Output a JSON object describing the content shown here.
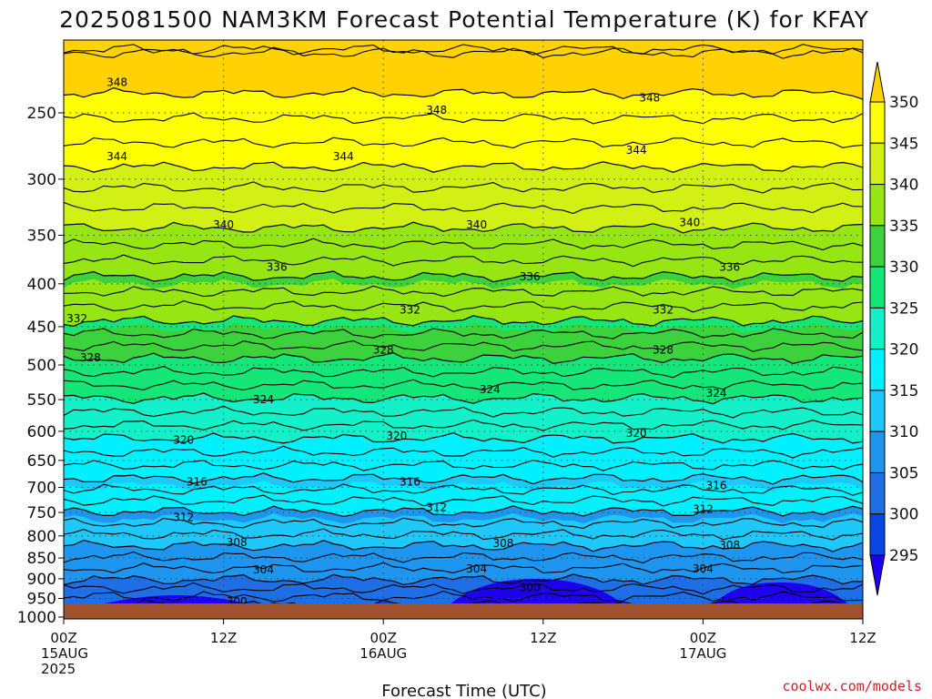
{
  "chart_data": {
    "type": "heatmap",
    "title": "2025081500 NAM3KM Forecast Potential Temperature (K) for KFAY",
    "xlabel": "Forecast Time (UTC)",
    "x_ticks": [
      {
        "value": 0,
        "lines": [
          "00Z",
          "15AUG",
          "2025"
        ]
      },
      {
        "value": 12,
        "lines": [
          "12Z"
        ]
      },
      {
        "value": 24,
        "lines": [
          "00Z",
          "16AUG"
        ]
      },
      {
        "value": 36,
        "lines": [
          "12Z"
        ]
      },
      {
        "value": 48,
        "lines": [
          "00Z",
          "17AUG"
        ]
      },
      {
        "value": 60,
        "lines": [
          "12Z"
        ]
      }
    ],
    "xlim": [
      0,
      60
    ],
    "y_scale": "log",
    "y_inverted": true,
    "y_ticks": [
      250,
      300,
      350,
      400,
      450,
      500,
      550,
      600,
      650,
      700,
      750,
      800,
      850,
      900,
      950,
      1000
    ],
    "ylim": [
      1000,
      200
    ],
    "colorbar": {
      "levels": [
        295,
        300,
        305,
        310,
        315,
        320,
        325,
        330,
        335,
        340,
        345,
        350
      ],
      "colors": [
        "#1e00f0",
        "#0a46e6",
        "#1e6ee6",
        "#1e96f0",
        "#1ec8fa",
        "#00f0ff",
        "#14f0c8",
        "#14e678",
        "#3cd23c",
        "#96e614",
        "#d2f014",
        "#ffff00",
        "#ffd200"
      ]
    },
    "contours": [
      {
        "value": 300,
        "p": 968
      },
      {
        "value": 304,
        "p": 902
      },
      {
        "value": 308,
        "p": 822
      },
      {
        "value": 312,
        "p": 748
      },
      {
        "value": 316,
        "p": 683
      },
      {
        "value": 320,
        "p": 612
      },
      {
        "value": 324,
        "p": 548
      },
      {
        "value": 328,
        "p": 491
      },
      {
        "value": 332,
        "p": 443
      },
      {
        "value": 336,
        "p": 392
      },
      {
        "value": 340,
        "p": 343
      },
      {
        "value": 344,
        "p": 290
      },
      {
        "value": 348,
        "p": 237
      }
    ],
    "contour_labels": [
      {
        "text": "348",
        "x": 4,
        "p": 230
      },
      {
        "text": "348",
        "x": 28,
        "p": 248
      },
      {
        "text": "348",
        "x": 44,
        "p": 240
      },
      {
        "text": "344",
        "x": 4,
        "p": 282
      },
      {
        "text": "344",
        "x": 21,
        "p": 282
      },
      {
        "text": "344",
        "x": 43,
        "p": 277
      },
      {
        "text": "340",
        "x": 12,
        "p": 340
      },
      {
        "text": "340",
        "x": 31,
        "p": 340
      },
      {
        "text": "340",
        "x": 47,
        "p": 338
      },
      {
        "text": "336",
        "x": 16,
        "p": 382
      },
      {
        "text": "336",
        "x": 35,
        "p": 392
      },
      {
        "text": "336",
        "x": 50,
        "p": 382
      },
      {
        "text": "332",
        "x": 1,
        "p": 440
      },
      {
        "text": "332",
        "x": 26,
        "p": 430
      },
      {
        "text": "332",
        "x": 45,
        "p": 430
      },
      {
        "text": "328",
        "x": 2,
        "p": 490
      },
      {
        "text": "328",
        "x": 24,
        "p": 480
      },
      {
        "text": "328",
        "x": 45,
        "p": 480
      },
      {
        "text": "324",
        "x": 15,
        "p": 550
      },
      {
        "text": "324",
        "x": 32,
        "p": 535
      },
      {
        "text": "324",
        "x": 49,
        "p": 540
      },
      {
        "text": "320",
        "x": 9,
        "p": 615
      },
      {
        "text": "320",
        "x": 25,
        "p": 608
      },
      {
        "text": "320",
        "x": 43,
        "p": 603
      },
      {
        "text": "316",
        "x": 10,
        "p": 690
      },
      {
        "text": "316",
        "x": 26,
        "p": 690
      },
      {
        "text": "316",
        "x": 49,
        "p": 697
      },
      {
        "text": "312",
        "x": 9,
        "p": 760
      },
      {
        "text": "312",
        "x": 28,
        "p": 740
      },
      {
        "text": "312",
        "x": 48,
        "p": 743
      },
      {
        "text": "308",
        "x": 13,
        "p": 815
      },
      {
        "text": "308",
        "x": 33,
        "p": 817
      },
      {
        "text": "308",
        "x": 50,
        "p": 821
      },
      {
        "text": "304",
        "x": 15,
        "p": 878
      },
      {
        "text": "304",
        "x": 31,
        "p": 876
      },
      {
        "text": "304",
        "x": 48,
        "p": 876
      },
      {
        "text": "300",
        "x": 13,
        "p": 958
      },
      {
        "text": "300",
        "x": 35,
        "p": 922
      }
    ]
  },
  "credit": "coolwx.com/models"
}
